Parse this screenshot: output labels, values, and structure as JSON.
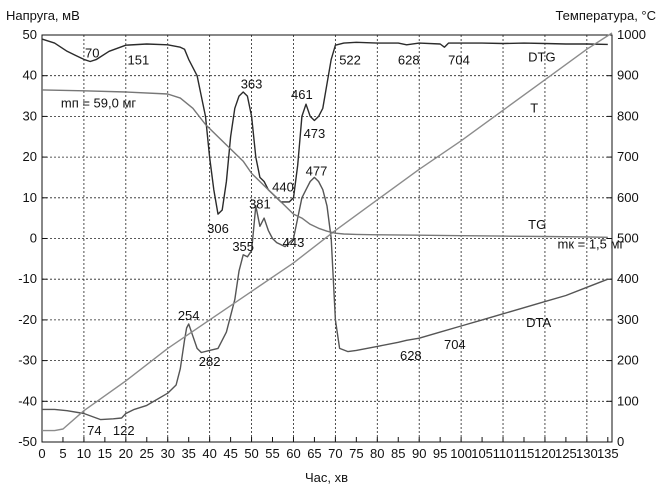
{
  "chart_data": {
    "type": "line",
    "ylabel_left": "Напруга, мВ",
    "ylabel_right": "Температура, °C",
    "xlabel": "Час, хв",
    "xlim": [
      0,
      136
    ],
    "ylim_left": [
      -50,
      50
    ],
    "ylim_right": [
      0,
      1000
    ],
    "grid": true,
    "x_ticks": [
      "0",
      "5",
      "10",
      "15",
      "20",
      "25",
      "30",
      "35",
      "40",
      "45",
      "50",
      "55",
      "60",
      "65",
      "70",
      "75",
      "80",
      "85",
      "90",
      "95",
      "100",
      "105",
      "110",
      "115",
      "120",
      "125",
      "130",
      "135"
    ],
    "y_ticks_left": [
      "50",
      "40",
      "30",
      "20",
      "10",
      "0",
      "-10",
      "-20",
      "-30",
      "-40",
      "-50"
    ],
    "y_ticks_right": [
      "1000",
      "900",
      "800",
      "700",
      "600",
      "500",
      "400",
      "300",
      "200",
      "100",
      "0"
    ],
    "series": [
      {
        "name": "DTG",
        "axis": "left",
        "color": "#2b2b2b",
        "x": [
          0,
          3,
          6,
          8,
          10,
          11.5,
          13,
          16,
          20,
          25,
          30,
          33,
          34,
          35,
          36,
          37,
          38,
          39,
          40,
          41,
          42,
          43,
          44,
          45,
          46,
          47,
          48,
          49,
          50,
          51,
          52,
          53,
          54,
          55,
          56,
          57,
          58,
          59,
          60,
          61,
          62,
          63,
          64,
          65,
          66,
          67,
          68,
          69,
          70,
          72,
          75,
          80,
          85,
          87,
          90,
          95,
          96,
          97,
          100,
          105,
          110,
          115,
          120,
          125,
          130,
          135
        ],
        "y": [
          49,
          48,
          46,
          45,
          44,
          43.5,
          44,
          46,
          47.5,
          47.8,
          47.6,
          47,
          46.5,
          44,
          42,
          40,
          35,
          30,
          20,
          12,
          6,
          7,
          14,
          25,
          32,
          35,
          36,
          35,
          30,
          20,
          15,
          14,
          12,
          11,
          10,
          9,
          9,
          9,
          10,
          18,
          30,
          33,
          30,
          29,
          30,
          32,
          38,
          44,
          47.5,
          48,
          48.2,
          48,
          48,
          47.6,
          48,
          47.8,
          47,
          48,
          48,
          48,
          47.9,
          48,
          47.9,
          47.8,
          47.8,
          47.7
        ]
      },
      {
        "name": "DTA",
        "axis": "left",
        "color": "#555555",
        "x": [
          0,
          3,
          6,
          10,
          14,
          17,
          19,
          20,
          22,
          25,
          30,
          32,
          33,
          34,
          34.5,
          35,
          36,
          37,
          38,
          40,
          42,
          44,
          46,
          47,
          48,
          49,
          50,
          51,
          52,
          53,
          54,
          55,
          56,
          57,
          58,
          59,
          60,
          61,
          62,
          63,
          64,
          65,
          66,
          67,
          68,
          69,
          70,
          71,
          73,
          75,
          80,
          85,
          87,
          90,
          95,
          100,
          105,
          110,
          115,
          120,
          125,
          130,
          135
        ],
        "y": [
          -42,
          -42,
          -42.3,
          -43,
          -44.5,
          -44.3,
          -44.1,
          -43,
          -42,
          -41,
          -38,
          -36,
          -32,
          -25,
          -22,
          -21,
          -24,
          -27,
          -28,
          -27.5,
          -27,
          -23,
          -15,
          -8,
          -4,
          -4.5,
          -3,
          8,
          3,
          5,
          2,
          0,
          -1,
          -1.5,
          -2,
          -1,
          0,
          5,
          10,
          12,
          14,
          15,
          14,
          12,
          8,
          0,
          -20,
          -27,
          -27.8,
          -27.5,
          -26.5,
          -25.5,
          -25,
          -24.5,
          -23,
          -21.5,
          -20,
          -18.5,
          -17,
          -15.5,
          -14,
          -12,
          -10
        ]
      },
      {
        "name": "T",
        "axis": "right",
        "color": "#8c8c8c",
        "x": [
          0,
          3,
          5,
          10,
          20,
          30,
          40,
          50,
          60,
          70,
          80,
          90,
          100,
          110,
          120,
          130,
          136
        ],
        "y": [
          28,
          28,
          32,
          77,
          150,
          230,
          300,
          370,
          440,
          520,
          595,
          670,
          740,
          815,
          890,
          965,
          1005
        ]
      },
      {
        "name": "TG",
        "axis": "left",
        "color": "#777777",
        "x": [
          0,
          10,
          20,
          30,
          33,
          36,
          39,
          42,
          45,
          48,
          50,
          52,
          54,
          56,
          58,
          60,
          62,
          64,
          66,
          68,
          70,
          72,
          75,
          80,
          90,
          100,
          110,
          120,
          130,
          135
        ],
        "y": [
          36.5,
          36.3,
          36,
          35.5,
          34.5,
          32,
          28,
          25,
          22,
          19,
          16,
          14,
          12,
          10,
          8,
          6,
          5,
          3.5,
          2.5,
          1.8,
          1.3,
          1.1,
          1,
          0.9,
          0.8,
          0.7,
          0.6,
          0.5,
          0.4,
          0.3
        ]
      }
    ],
    "series_labels": [
      {
        "text": "DTG",
        "x": 116,
        "y": 43.5
      },
      {
        "text": "T",
        "x": 116.5,
        "y": 31
      },
      {
        "text": "TG",
        "x": 116,
        "y": 2.3
      },
      {
        "text": "DTA",
        "x": 115.5,
        "y": -21.8
      }
    ],
    "annotations": [
      {
        "text": "70",
        "x": 12,
        "y": 44.5
      },
      {
        "text": "151",
        "x": 23,
        "y": 42.7
      },
      {
        "text": "363",
        "x": 50,
        "y": 36.8
      },
      {
        "text": "461",
        "x": 62,
        "y": 34.3
      },
      {
        "text": "473",
        "x": 65,
        "y": 24.7
      },
      {
        "text": "306",
        "x": 42,
        "y": 1.3
      },
      {
        "text": "440",
        "x": 57.5,
        "y": 11.5
      },
      {
        "text": "477",
        "x": 65.5,
        "y": 15.5
      },
      {
        "text": "381",
        "x": 52,
        "y": 7.4
      },
      {
        "text": "355",
        "x": 48,
        "y": -3.1
      },
      {
        "text": "443",
        "x": 60,
        "y": -2.1
      },
      {
        "text": "254",
        "x": 35,
        "y": -20
      },
      {
        "text": "282",
        "x": 40,
        "y": -31.3
      },
      {
        "text": "522",
        "x": 73.5,
        "y": 42.7
      },
      {
        "text": "628",
        "x": 87.5,
        "y": 42.7
      },
      {
        "text": "704",
        "x": 99.5,
        "y": 42.7
      },
      {
        "text": "628",
        "x": 88,
        "y": -29.9
      },
      {
        "text": "704",
        "x": 98.5,
        "y": -27.1
      },
      {
        "text": "74",
        "x": 12.5,
        "y": -48.3
      },
      {
        "text": "122",
        "x": 19.5,
        "y": -48.3
      }
    ],
    "mass_labels": [
      {
        "text": "mп = 59,0 мг",
        "x": 4.5,
        "y": 32.2
      },
      {
        "text": "mк = 1,5 мг",
        "x": 123,
        "y": -2.5
      }
    ]
  }
}
